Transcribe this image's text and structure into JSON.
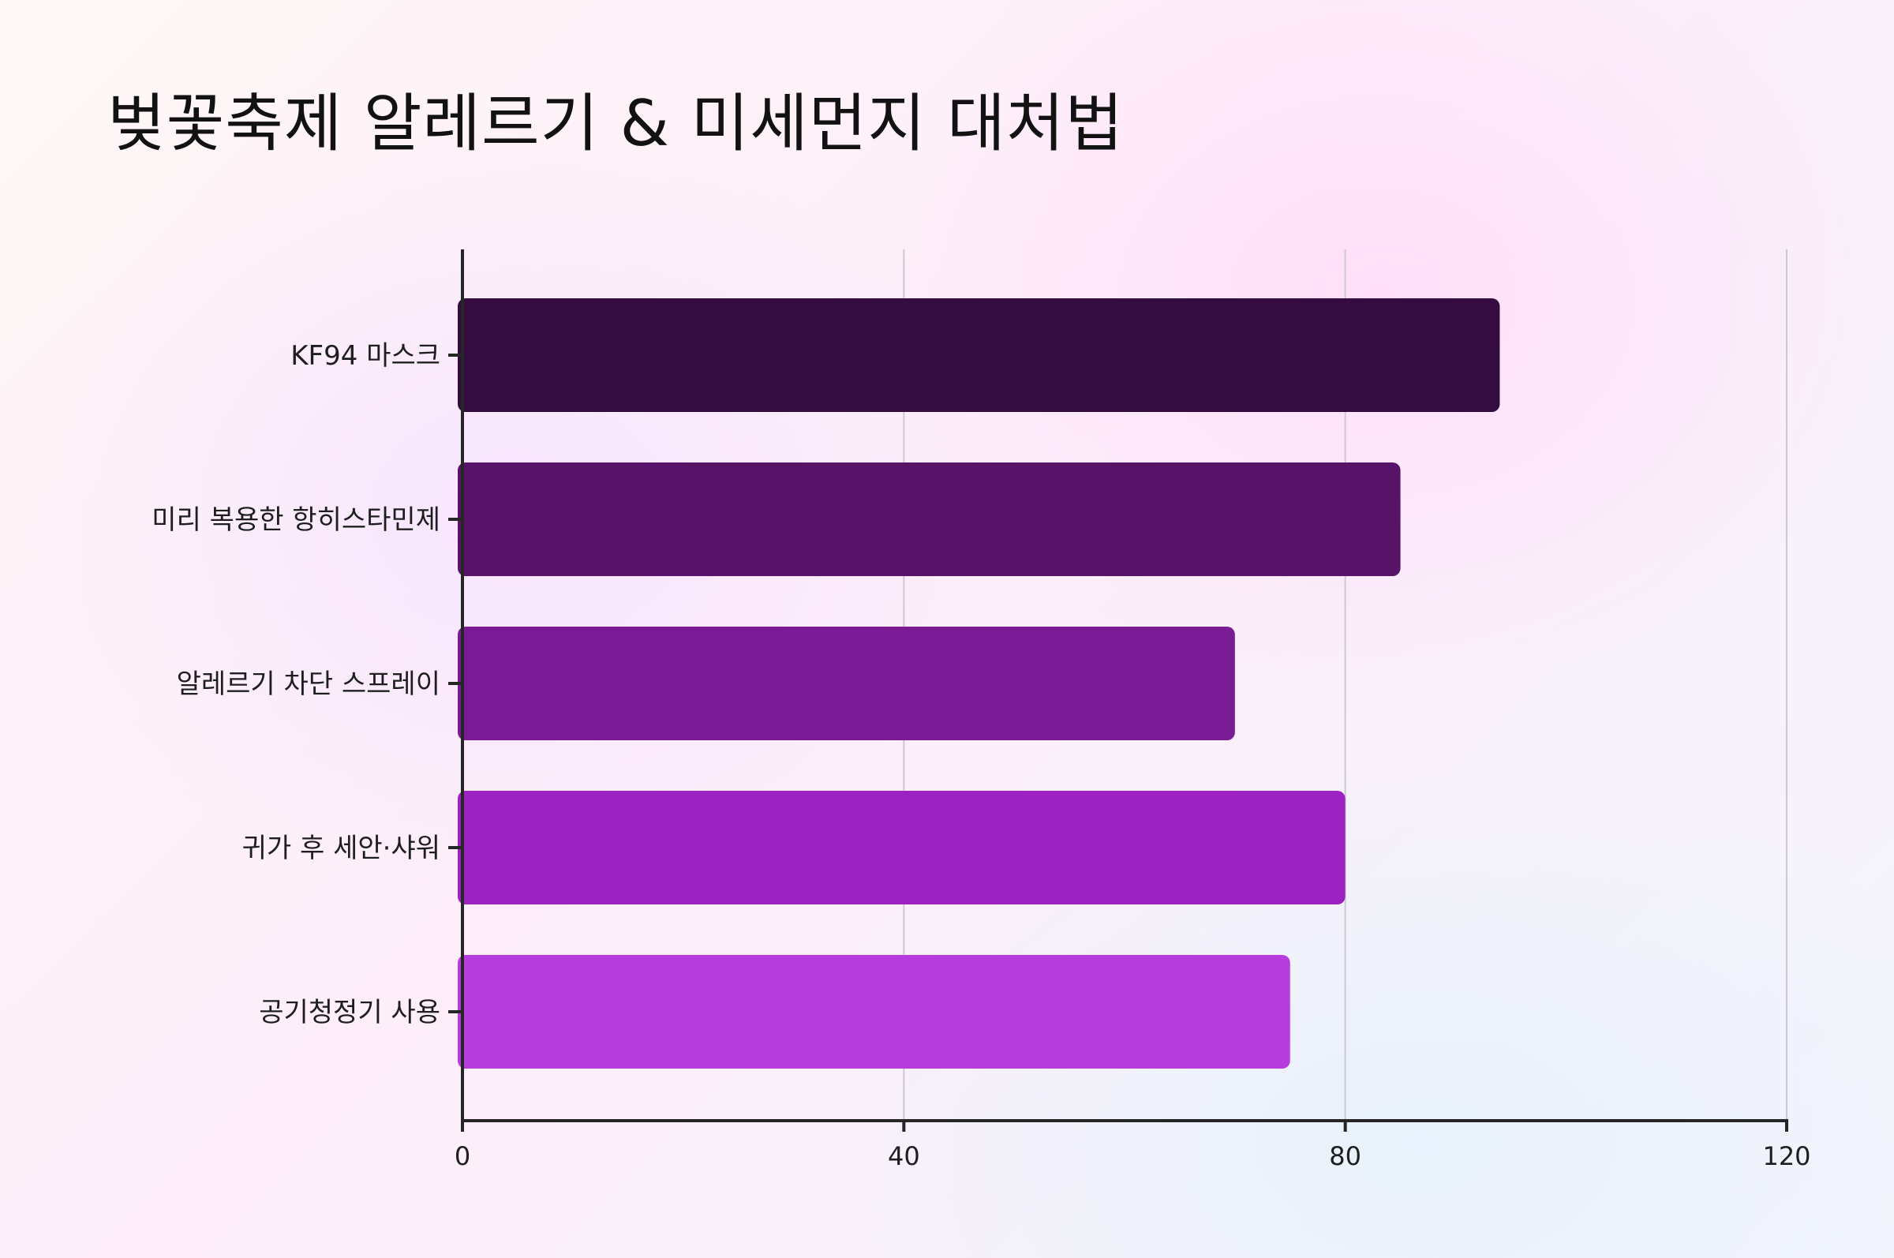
{
  "chart_data": {
    "type": "bar",
    "orientation": "horizontal",
    "title": "벚꽃축제 알레르기 & 미세먼지 대처법",
    "categories": [
      "KF94 마스크",
      "미리 복용한 항히스타민제",
      "알레르기 차단 스프레이",
      "귀가 후 세안·샤워",
      "공기청정기 사용"
    ],
    "values": [
      94,
      85,
      70,
      80,
      75
    ],
    "colors": [
      "#350c40",
      "#561368",
      "#7a1b96",
      "#9d22c2",
      "#b63cde"
    ],
    "xlim": [
      0,
      120
    ],
    "xticks": [
      0,
      40,
      80,
      120
    ],
    "xlabel": "",
    "ylabel": "",
    "grid": true,
    "legend": "none"
  }
}
